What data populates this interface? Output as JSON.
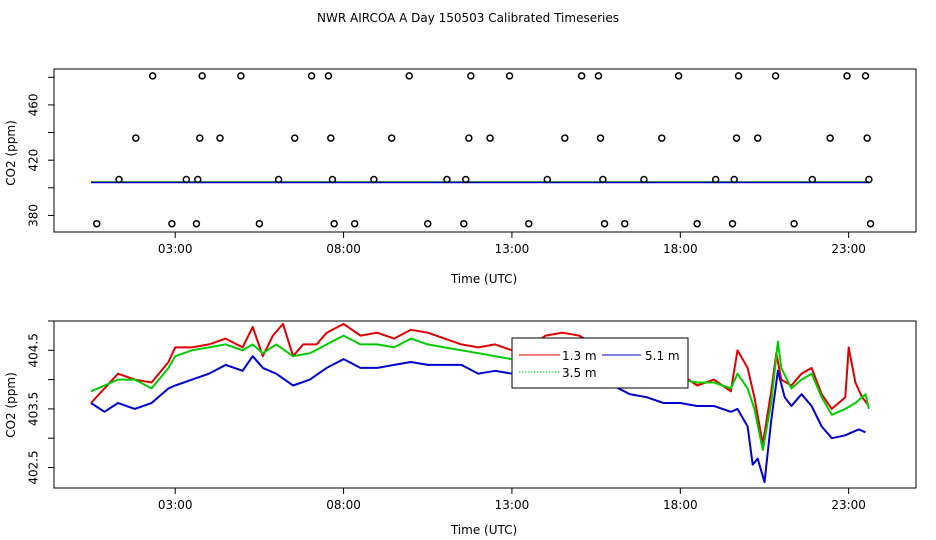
{
  "figure": {
    "title": "NWR AIRCOA A  Day 150503  Calibrated Timeseries"
  },
  "chart_data": [
    {
      "type": "scatter",
      "title": "",
      "xlabel": "Time (UTC)",
      "ylabel": "CO2 (ppm)",
      "xlim": [
        -0.6,
        25.0
      ],
      "ylim": [
        368.0,
        486.0
      ],
      "x_ticks": [
        3,
        8,
        13,
        18,
        23
      ],
      "x_tick_labels": [
        "03:00",
        "08:00",
        "13:00",
        "18:00",
        "23:00"
      ],
      "y_ticks": [
        380,
        420,
        460
      ],
      "y_tick_labels": [
        "380",
        "420",
        "460"
      ],
      "calibration_points": [
        {
          "x": 0.67,
          "y": 374
        },
        {
          "x": 1.33,
          "y": 406
        },
        {
          "x": 1.83,
          "y": 436
        },
        {
          "x": 2.33,
          "y": 481
        },
        {
          "x": 2.9,
          "y": 374
        },
        {
          "x": 3.33,
          "y": 406
        },
        {
          "x": 3.63,
          "y": 374
        },
        {
          "x": 3.67,
          "y": 406
        },
        {
          "x": 3.73,
          "y": 436
        },
        {
          "x": 3.8,
          "y": 481
        },
        {
          "x": 4.33,
          "y": 436
        },
        {
          "x": 4.95,
          "y": 481
        },
        {
          "x": 5.5,
          "y": 374
        },
        {
          "x": 6.07,
          "y": 406
        },
        {
          "x": 6.55,
          "y": 436
        },
        {
          "x": 7.05,
          "y": 481
        },
        {
          "x": 7.55,
          "y": 481
        },
        {
          "x": 7.62,
          "y": 436
        },
        {
          "x": 7.67,
          "y": 406
        },
        {
          "x": 7.72,
          "y": 374
        },
        {
          "x": 8.33,
          "y": 374
        },
        {
          "x": 8.9,
          "y": 406
        },
        {
          "x": 9.43,
          "y": 436
        },
        {
          "x": 9.95,
          "y": 481
        },
        {
          "x": 10.5,
          "y": 374
        },
        {
          "x": 11.07,
          "y": 406
        },
        {
          "x": 11.57,
          "y": 374
        },
        {
          "x": 11.63,
          "y": 406
        },
        {
          "x": 11.72,
          "y": 436
        },
        {
          "x": 11.78,
          "y": 481
        },
        {
          "x": 12.35,
          "y": 436
        },
        {
          "x": 12.93,
          "y": 481
        },
        {
          "x": 13.5,
          "y": 374
        },
        {
          "x": 14.05,
          "y": 406
        },
        {
          "x": 14.57,
          "y": 436
        },
        {
          "x": 15.07,
          "y": 481
        },
        {
          "x": 15.57,
          "y": 481
        },
        {
          "x": 15.63,
          "y": 436
        },
        {
          "x": 15.7,
          "y": 406
        },
        {
          "x": 15.75,
          "y": 374
        },
        {
          "x": 16.35,
          "y": 374
        },
        {
          "x": 16.92,
          "y": 406
        },
        {
          "x": 17.45,
          "y": 436
        },
        {
          "x": 17.95,
          "y": 481
        },
        {
          "x": 18.5,
          "y": 374
        },
        {
          "x": 19.05,
          "y": 406
        },
        {
          "x": 19.55,
          "y": 374
        },
        {
          "x": 19.6,
          "y": 406
        },
        {
          "x": 19.67,
          "y": 436
        },
        {
          "x": 19.73,
          "y": 481
        },
        {
          "x": 20.3,
          "y": 436
        },
        {
          "x": 20.83,
          "y": 481
        },
        {
          "x": 21.38,
          "y": 374
        },
        {
          "x": 21.92,
          "y": 406
        },
        {
          "x": 22.45,
          "y": 436
        },
        {
          "x": 22.95,
          "y": 481
        },
        {
          "x": 23.5,
          "y": 481
        },
        {
          "x": 23.55,
          "y": 436
        },
        {
          "x": 23.6,
          "y": 406
        },
        {
          "x": 23.65,
          "y": 374
        }
      ],
      "series_level_ppm": 404.2,
      "series_colors": {
        "1.3 m": "#e00000",
        "3.5 m": "#00cc00",
        "5.1 m": "#0000d0"
      }
    },
    {
      "type": "line",
      "title": "",
      "xlabel": "Time (UTC)",
      "ylabel": "CO2 (ppm)",
      "xlim": [
        -0.6,
        25.0
      ],
      "ylim": [
        402.15,
        405.0
      ],
      "x_ticks": [
        3,
        8,
        13,
        18,
        23
      ],
      "x_tick_labels": [
        "03:00",
        "08:00",
        "13:00",
        "18:00",
        "23:00"
      ],
      "y_ticks": [
        402.5,
        403.5,
        404.5
      ],
      "y_tick_labels": [
        "402.5",
        "403.5",
        "404.5"
      ],
      "legend": {
        "position": "top-center",
        "entries": [
          {
            "label": "1.3 m",
            "color": "#e00000"
          },
          {
            "label": "3.5 m",
            "color": "#00cc00"
          },
          {
            "label": "5.1 m",
            "color": "#0000d0"
          }
        ]
      },
      "series": [
        {
          "name": "1.3 m",
          "color": "#e00000",
          "points": [
            [
              0.5,
              403.6
            ],
            [
              0.9,
              403.85
            ],
            [
              1.3,
              404.1
            ],
            [
              1.8,
              404.0
            ],
            [
              2.3,
              403.95
            ],
            [
              2.8,
              404.3
            ],
            [
              3.0,
              404.55
            ],
            [
              3.5,
              404.55
            ],
            [
              4.0,
              404.6
            ],
            [
              4.5,
              404.7
            ],
            [
              5.0,
              404.55
            ],
            [
              5.3,
              404.9
            ],
            [
              5.6,
              404.4
            ],
            [
              5.9,
              404.75
            ],
            [
              6.2,
              404.95
            ],
            [
              6.5,
              404.4
            ],
            [
              6.8,
              404.6
            ],
            [
              7.2,
              404.6
            ],
            [
              7.5,
              404.8
            ],
            [
              8.0,
              404.95
            ],
            [
              8.5,
              404.75
            ],
            [
              9.0,
              404.8
            ],
            [
              9.5,
              404.7
            ],
            [
              10.0,
              404.85
            ],
            [
              10.5,
              404.8
            ],
            [
              11.0,
              404.7
            ],
            [
              11.5,
              404.6
            ],
            [
              12.0,
              404.55
            ],
            [
              12.5,
              404.6
            ],
            [
              13.0,
              404.5
            ],
            [
              13.5,
              404.55
            ],
            [
              14.0,
              404.75
            ],
            [
              14.5,
              404.8
            ],
            [
              15.0,
              404.75
            ],
            [
              15.4,
              404.6
            ],
            [
              15.8,
              404.3
            ],
            [
              16.2,
              404.5
            ],
            [
              16.6,
              404.35
            ],
            [
              17.0,
              404.25
            ],
            [
              17.5,
              404.05
            ],
            [
              18.0,
              404.1
            ],
            [
              18.5,
              403.9
            ],
            [
              19.0,
              404.0
            ],
            [
              19.5,
              403.8
            ],
            [
              19.7,
              404.5
            ],
            [
              20.0,
              404.2
            ],
            [
              20.2,
              403.7
            ],
            [
              20.45,
              402.9
            ],
            [
              20.7,
              403.8
            ],
            [
              20.85,
              404.45
            ],
            [
              21.0,
              404.0
            ],
            [
              21.3,
              403.9
            ],
            [
              21.6,
              404.1
            ],
            [
              21.9,
              404.2
            ],
            [
              22.2,
              403.75
            ],
            [
              22.5,
              403.5
            ],
            [
              22.7,
              403.6
            ],
            [
              22.9,
              403.7
            ],
            [
              23.0,
              404.55
            ],
            [
              23.2,
              403.95
            ],
            [
              23.4,
              403.7
            ],
            [
              23.6,
              403.55
            ]
          ]
        },
        {
          "name": "3.5 m",
          "color": "#00cc00",
          "points": [
            [
              0.5,
              403.8
            ],
            [
              0.9,
              403.9
            ],
            [
              1.3,
              404.0
            ],
            [
              1.8,
              404.0
            ],
            [
              2.3,
              403.85
            ],
            [
              2.8,
              404.2
            ],
            [
              3.0,
              404.4
            ],
            [
              3.5,
              404.5
            ],
            [
              4.0,
              404.55
            ],
            [
              4.5,
              404.6
            ],
            [
              5.0,
              404.5
            ],
            [
              5.3,
              404.6
            ],
            [
              5.6,
              404.45
            ],
            [
              6.0,
              404.6
            ],
            [
              6.5,
              404.4
            ],
            [
              7.0,
              404.45
            ],
            [
              7.5,
              404.6
            ],
            [
              8.0,
              404.75
            ],
            [
              8.5,
              404.6
            ],
            [
              9.0,
              404.6
            ],
            [
              9.5,
              404.55
            ],
            [
              10.0,
              404.7
            ],
            [
              10.5,
              404.6
            ],
            [
              11.0,
              404.55
            ],
            [
              11.5,
              404.5
            ],
            [
              12.0,
              404.45
            ],
            [
              12.5,
              404.4
            ],
            [
              13.0,
              404.35
            ],
            [
              13.5,
              404.45
            ],
            [
              14.0,
              404.5
            ],
            [
              14.5,
              404.55
            ],
            [
              15.0,
              404.6
            ],
            [
              15.5,
              404.4
            ],
            [
              16.0,
              404.3
            ],
            [
              16.5,
              404.2
            ],
            [
              17.0,
              404.05
            ],
            [
              17.5,
              404.0
            ],
            [
              18.0,
              404.0
            ],
            [
              18.5,
              403.95
            ],
            [
              19.0,
              403.95
            ],
            [
              19.5,
              403.85
            ],
            [
              19.7,
              404.1
            ],
            [
              20.0,
              403.85
            ],
            [
              20.2,
              403.5
            ],
            [
              20.45,
              402.8
            ],
            [
              20.7,
              403.6
            ],
            [
              20.9,
              404.65
            ],
            [
              21.0,
              404.2
            ],
            [
              21.3,
              403.85
            ],
            [
              21.6,
              404.0
            ],
            [
              21.9,
              404.1
            ],
            [
              22.2,
              403.7
            ],
            [
              22.5,
              403.4
            ],
            [
              22.9,
              403.5
            ],
            [
              23.2,
              403.6
            ],
            [
              23.5,
              403.75
            ],
            [
              23.6,
              403.5
            ]
          ]
        },
        {
          "name": "5.1 m",
          "color": "#0000d0",
          "points": [
            [
              0.5,
              403.6
            ],
            [
              0.9,
              403.45
            ],
            [
              1.3,
              403.6
            ],
            [
              1.8,
              403.5
            ],
            [
              2.3,
              403.6
            ],
            [
              2.8,
              403.85
            ],
            [
              3.0,
              403.9
            ],
            [
              3.5,
              404.0
            ],
            [
              4.0,
              404.1
            ],
            [
              4.5,
              404.25
            ],
            [
              5.0,
              404.15
            ],
            [
              5.3,
              404.4
            ],
            [
              5.6,
              404.2
            ],
            [
              6.0,
              404.1
            ],
            [
              6.5,
              403.9
            ],
            [
              7.0,
              404.0
            ],
            [
              7.5,
              404.2
            ],
            [
              8.0,
              404.35
            ],
            [
              8.5,
              404.2
            ],
            [
              9.0,
              404.2
            ],
            [
              9.5,
              404.25
            ],
            [
              10.0,
              404.3
            ],
            [
              10.5,
              404.25
            ],
            [
              11.0,
              404.25
            ],
            [
              11.5,
              404.25
            ],
            [
              12.0,
              404.1
            ],
            [
              12.5,
              404.15
            ],
            [
              13.0,
              404.1
            ],
            [
              13.5,
              404.05
            ],
            [
              14.0,
              404.1
            ],
            [
              14.5,
              404.15
            ],
            [
              15.0,
              404.15
            ],
            [
              15.5,
              404.0
            ],
            [
              16.0,
              403.9
            ],
            [
              16.5,
              403.75
            ],
            [
              17.0,
              403.7
            ],
            [
              17.5,
              403.6
            ],
            [
              18.0,
              403.6
            ],
            [
              18.5,
              403.55
            ],
            [
              19.0,
              403.55
            ],
            [
              19.5,
              403.45
            ],
            [
              19.7,
              403.5
            ],
            [
              20.0,
              403.2
            ],
            [
              20.15,
              402.55
            ],
            [
              20.3,
              402.65
            ],
            [
              20.5,
              402.25
            ],
            [
              20.7,
              403.3
            ],
            [
              20.9,
              404.15
            ],
            [
              21.1,
              403.7
            ],
            [
              21.3,
              403.55
            ],
            [
              21.6,
              403.75
            ],
            [
              21.9,
              403.55
            ],
            [
              22.2,
              403.2
            ],
            [
              22.5,
              403.0
            ],
            [
              22.9,
              403.05
            ],
            [
              23.1,
              403.1
            ],
            [
              23.3,
              403.15
            ],
            [
              23.5,
              403.1
            ]
          ]
        }
      ]
    }
  ]
}
